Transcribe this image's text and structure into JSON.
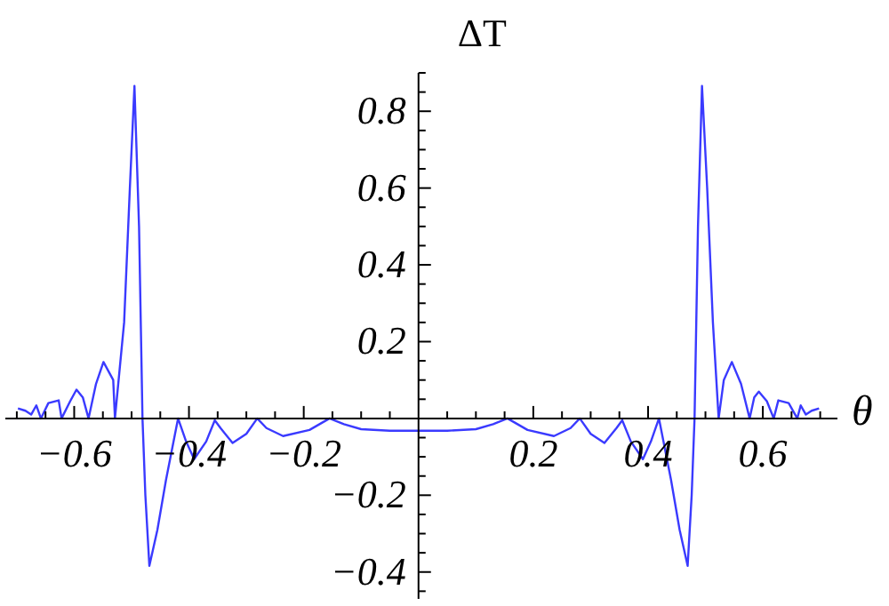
{
  "chart_data": {
    "type": "line",
    "xlabel": "θ",
    "ylabel": "ΔT",
    "xlim": [
      -0.72,
      0.73
    ],
    "ylim": [
      -0.47,
      0.9
    ],
    "xticks": [
      {
        "value": -0.7,
        "label": null
      },
      {
        "value": -0.65,
        "label": null
      },
      -0.6,
      {
        "value": -0.55,
        "label": null
      },
      {
        "value": -0.5,
        "label": null
      },
      {
        "value": -0.45,
        "label": null
      },
      -0.4,
      {
        "value": -0.35,
        "label": null
      },
      {
        "value": -0.3,
        "label": null
      },
      {
        "value": -0.25,
        "label": null
      },
      -0.2,
      {
        "value": -0.15,
        "label": null
      },
      {
        "value": -0.1,
        "label": null
      },
      {
        "value": -0.05,
        "label": null
      },
      {
        "value": 0.05,
        "label": null
      },
      {
        "value": 0.1,
        "label": null
      },
      {
        "value": 0.15,
        "label": null
      },
      0.2,
      {
        "value": 0.25,
        "label": null
      },
      {
        "value": 0.3,
        "label": null
      },
      {
        "value": 0.35,
        "label": null
      },
      0.4,
      {
        "value": 0.45,
        "label": null
      },
      {
        "value": 0.5,
        "label": null
      },
      {
        "value": 0.55,
        "label": null
      },
      0.6,
      {
        "value": 0.65,
        "label": null
      },
      {
        "value": 0.7,
        "label": null
      }
    ],
    "yticks": [
      {
        "value": -0.45,
        "label": null
      },
      -0.4,
      {
        "value": -0.35,
        "label": null
      },
      {
        "value": -0.3,
        "label": null
      },
      {
        "value": -0.25,
        "label": null
      },
      -0.2,
      {
        "value": -0.15,
        "label": null
      },
      {
        "value": -0.1,
        "label": null
      },
      {
        "value": -0.05,
        "label": null
      },
      {
        "value": 0.05,
        "label": null
      },
      {
        "value": 0.1,
        "label": null
      },
      {
        "value": 0.15,
        "label": null
      },
      0.2,
      {
        "value": 0.25,
        "label": null
      },
      {
        "value": 0.3,
        "label": null
      },
      {
        "value": 0.35,
        "label": null
      },
      0.4,
      {
        "value": 0.45,
        "label": null
      },
      {
        "value": 0.5,
        "label": null
      },
      {
        "value": 0.55,
        "label": null
      },
      0.6,
      {
        "value": 0.65,
        "label": null
      },
      {
        "value": 0.7,
        "label": null
      },
      {
        "value": 0.75,
        "label": null
      },
      0.8,
      {
        "value": 0.85,
        "label": null
      },
      {
        "value": 0.9,
        "label": null
      }
    ],
    "x": [
      -0.698,
      -0.685,
      -0.675,
      -0.666,
      -0.658,
      -0.645,
      -0.627,
      -0.622,
      -0.607,
      -0.596,
      -0.585,
      -0.575,
      -0.562,
      -0.549,
      -0.532,
      -0.529,
      -0.513,
      -0.503,
      -0.495,
      -0.487,
      -0.481,
      -0.476,
      -0.469,
      -0.455,
      -0.44,
      -0.419,
      -0.405,
      -0.391,
      -0.37,
      -0.355,
      -0.345,
      -0.324,
      -0.3,
      -0.281,
      -0.265,
      -0.236,
      -0.19,
      -0.155,
      -0.13,
      -0.1,
      -0.05,
      0,
      0.05,
      0.1,
      0.13,
      0.155,
      0.19,
      0.236,
      0.265,
      0.281,
      0.3,
      0.324,
      0.345,
      0.355,
      0.37,
      0.391,
      0.405,
      0.419,
      0.44,
      0.455,
      0.469,
      0.476,
      0.481,
      0.487,
      0.494,
      0.503,
      0.513,
      0.523,
      0.532,
      0.546,
      0.562,
      0.577,
      0.585,
      0.593,
      0.607,
      0.619,
      0.627,
      0.645,
      0.66,
      0.666,
      0.675,
      0.685,
      0.698
    ],
    "series": [
      {
        "color": "#3a3aff",
        "line_style": "solid",
        "values": [
          0.026,
          0.02,
          0.01,
          0.034,
          0,
          0.04,
          0.047,
          0,
          0.045,
          0.075,
          0.055,
          0,
          0.09,
          0.147,
          0.1,
          0,
          0.25,
          0.6,
          0.866,
          0.5,
          0,
          -0.2,
          -0.384,
          -0.29,
          -0.16,
          0,
          -0.06,
          -0.106,
          -0.06,
          -0.005,
          -0.025,
          -0.064,
          -0.04,
          0,
          -0.025,
          -0.046,
          -0.03,
          0,
          -0.015,
          -0.028,
          -0.032,
          -0.032,
          -0.032,
          -0.028,
          -0.015,
          0,
          -0.03,
          -0.046,
          -0.025,
          0,
          -0.04,
          -0.064,
          -0.025,
          -0.005,
          -0.06,
          -0.106,
          -0.06,
          0,
          -0.16,
          -0.29,
          -0.384,
          -0.2,
          0,
          0.5,
          0.866,
          0.6,
          0.25,
          0,
          0.1,
          0.147,
          0.09,
          0,
          0.055,
          0.07,
          0.045,
          0,
          0.047,
          0.04,
          0,
          0.034,
          0.01,
          0.02,
          0.026
        ]
      }
    ]
  }
}
